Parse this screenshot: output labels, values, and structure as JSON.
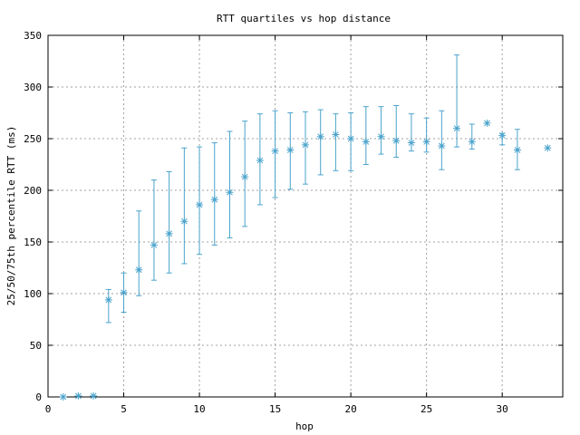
{
  "chart_data": {
    "type": "scatter",
    "title": "RTT quartiles vs hop distance",
    "xlabel": "hop",
    "ylabel": "25/50/75th percentile RTT (ms)",
    "xlim": [
      0,
      34
    ],
    "ylim": [
      0,
      350
    ],
    "xticks": [
      0,
      5,
      10,
      15,
      20,
      25,
      30
    ],
    "yticks": [
      0,
      50,
      100,
      150,
      200,
      250,
      300,
      350
    ],
    "grid": true,
    "legend": "none",
    "color": "#4aa3cc",
    "points": [
      {
        "x": 1,
        "median": 0,
        "q25": 0,
        "q75": 0
      },
      {
        "x": 2,
        "median": 1,
        "q25": 1,
        "q75": 1
      },
      {
        "x": 3,
        "median": 1,
        "q25": 1,
        "q75": 1
      },
      {
        "x": 4,
        "median": 94,
        "q25": 72,
        "q75": 104
      },
      {
        "x": 5,
        "median": 101,
        "q25": 82,
        "q75": 120
      },
      {
        "x": 6,
        "median": 123,
        "q25": 98,
        "q75": 180
      },
      {
        "x": 7,
        "median": 147,
        "q25": 113,
        "q75": 210
      },
      {
        "x": 8,
        "median": 158,
        "q25": 120,
        "q75": 218
      },
      {
        "x": 9,
        "median": 170,
        "q25": 129,
        "q75": 241
      },
      {
        "x": 10,
        "median": 186,
        "q25": 138,
        "q75": 242
      },
      {
        "x": 11,
        "median": 191,
        "q25": 147,
        "q75": 246
      },
      {
        "x": 12,
        "median": 198,
        "q25": 154,
        "q75": 257
      },
      {
        "x": 13,
        "median": 213,
        "q25": 165,
        "q75": 267
      },
      {
        "x": 14,
        "median": 229,
        "q25": 186,
        "q75": 274
      },
      {
        "x": 15,
        "median": 238,
        "q25": 193,
        "q75": 277
      },
      {
        "x": 16,
        "median": 239,
        "q25": 201,
        "q75": 275
      },
      {
        "x": 17,
        "median": 244,
        "q25": 206,
        "q75": 276
      },
      {
        "x": 18,
        "median": 252,
        "q25": 215,
        "q75": 278
      },
      {
        "x": 19,
        "median": 254,
        "q25": 219,
        "q75": 274
      },
      {
        "x": 20,
        "median": 250,
        "q25": 219,
        "q75": 275
      },
      {
        "x": 21,
        "median": 247,
        "q25": 225,
        "q75": 281
      },
      {
        "x": 22,
        "median": 252,
        "q25": 235,
        "q75": 281
      },
      {
        "x": 23,
        "median": 248,
        "q25": 232,
        "q75": 282
      },
      {
        "x": 24,
        "median": 246,
        "q25": 238,
        "q75": 274
      },
      {
        "x": 25,
        "median": 247,
        "q25": 237,
        "q75": 270
      },
      {
        "x": 26,
        "median": 243,
        "q25": 220,
        "q75": 277
      },
      {
        "x": 27,
        "median": 260,
        "q25": 242,
        "q75": 331
      },
      {
        "x": 28,
        "median": 247,
        "q25": 240,
        "q75": 264
      },
      {
        "x": 29,
        "median": 265,
        "q25": 265,
        "q75": 265
      },
      {
        "x": 30,
        "median": 253,
        "q25": 244,
        "q75": 255
      },
      {
        "x": 31,
        "median": 239,
        "q25": 220,
        "q75": 259
      },
      {
        "x": 33,
        "median": 241,
        "q25": 241,
        "q75": 241
      }
    ]
  }
}
